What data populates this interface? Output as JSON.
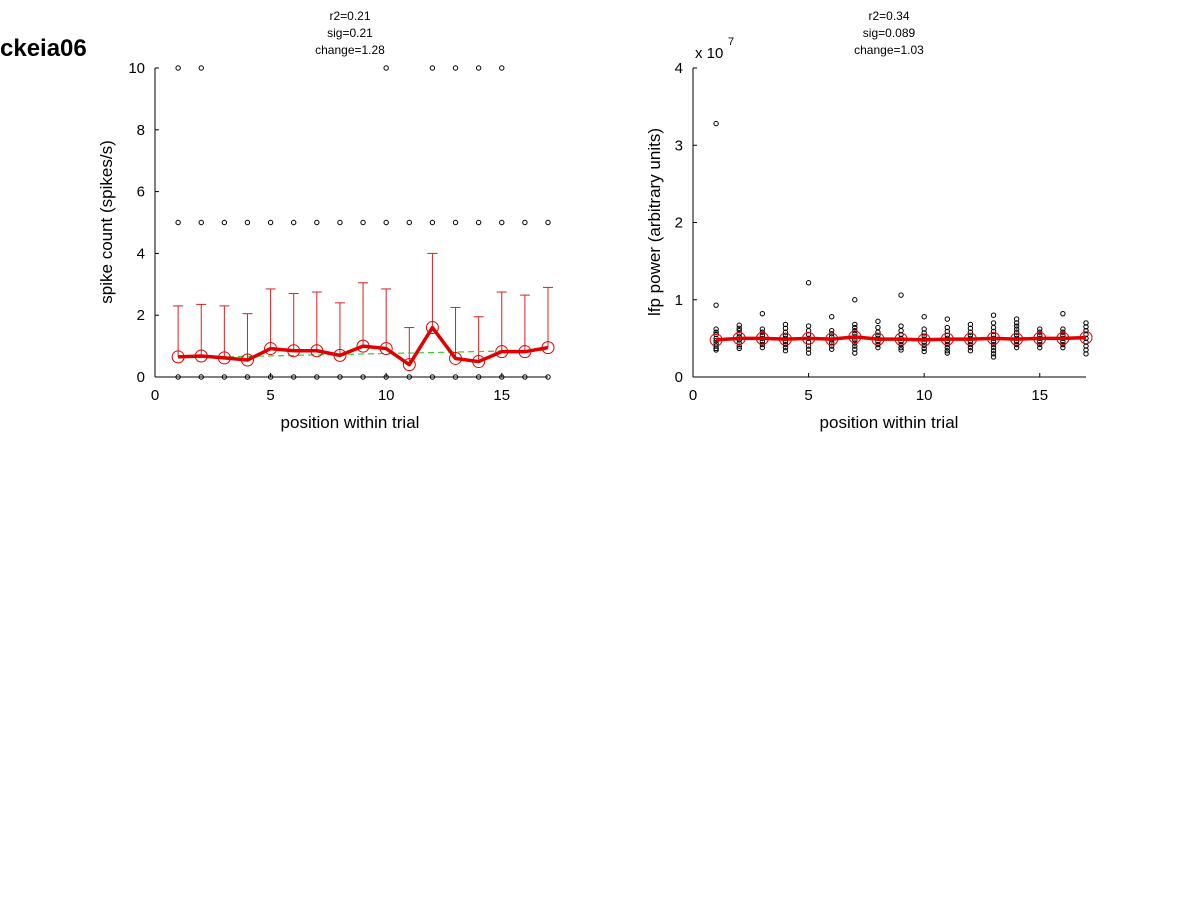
{
  "figure_title": "ckeia06",
  "chart_data": [
    {
      "type": "scatter",
      "stats": [
        "r2=0.21",
        "sig=0.21",
        "change=1.28"
      ],
      "xlabel": "position within trial",
      "ylabel": "spike count (spikes/s)",
      "xlim": [
        0,
        17
      ],
      "ylim": [
        0,
        10
      ],
      "xticks": [
        0,
        5,
        10,
        15
      ],
      "yticks": [
        0,
        2,
        4,
        6,
        8,
        10
      ],
      "exponent": null,
      "colors": {
        "raw": "#000000",
        "mean": "#e00000",
        "errorbar": "#d82020",
        "fit": "#33cc33"
      },
      "raw_points": [
        [
          1,
          0
        ],
        [
          1,
          5
        ],
        [
          1,
          10
        ],
        [
          2,
          0
        ],
        [
          2,
          5
        ],
        [
          2,
          10
        ],
        [
          3,
          0
        ],
        [
          3,
          5
        ],
        [
          4,
          0
        ],
        [
          4,
          5
        ],
        [
          5,
          0
        ],
        [
          5,
          5
        ],
        [
          6,
          0
        ],
        [
          6,
          5
        ],
        [
          7,
          0
        ],
        [
          7,
          5
        ],
        [
          8,
          0
        ],
        [
          8,
          5
        ],
        [
          9,
          0
        ],
        [
          9,
          5
        ],
        [
          10,
          0
        ],
        [
          10,
          5
        ],
        [
          10,
          10
        ],
        [
          11,
          0
        ],
        [
          11,
          5
        ],
        [
          12,
          0
        ],
        [
          12,
          5
        ],
        [
          12,
          10
        ],
        [
          13,
          0
        ],
        [
          13,
          5
        ],
        [
          13,
          10
        ],
        [
          14,
          0
        ],
        [
          14,
          5
        ],
        [
          14,
          10
        ],
        [
          15,
          0
        ],
        [
          15,
          5
        ],
        [
          15,
          10
        ],
        [
          16,
          0
        ],
        [
          16,
          5
        ],
        [
          17,
          0
        ],
        [
          17,
          5
        ]
      ],
      "mean": {
        "x": [
          1,
          2,
          3,
          4,
          5,
          6,
          7,
          8,
          9,
          10,
          11,
          12,
          13,
          14,
          15,
          16,
          17
        ],
        "y": [
          0.65,
          0.68,
          0.62,
          0.55,
          0.92,
          0.85,
          0.85,
          0.7,
          1.0,
          0.92,
          0.4,
          1.6,
          0.6,
          0.5,
          0.82,
          0.82,
          0.95
        ],
        "err_upper": [
          2.3,
          2.35,
          2.3,
          2.05,
          2.85,
          2.7,
          2.75,
          2.4,
          3.05,
          2.85,
          1.6,
          4.0,
          2.25,
          1.95,
          2.75,
          2.65,
          2.9
        ]
      },
      "fit": {
        "x": [
          1,
          17
        ],
        "y": [
          0.62,
          0.87
        ]
      }
    },
    {
      "type": "scatter",
      "stats": [
        "r2=0.34",
        "sig=0.089",
        "change=1.03"
      ],
      "xlabel": "position within trial",
      "ylabel": "lfp power (arbitrary units)",
      "xlim": [
        0,
        17
      ],
      "ylim": [
        0,
        4
      ],
      "xticks": [
        0,
        5,
        10,
        15
      ],
      "yticks": [
        0,
        1,
        2,
        3,
        4
      ],
      "exponent": {
        "base": "x 10",
        "power": "7"
      },
      "colors": {
        "raw": "#000000",
        "mean": "#e00000"
      },
      "raw_points": [
        [
          1,
          3.28
        ],
        [
          1,
          0.93
        ],
        [
          1,
          0.62
        ],
        [
          1,
          0.58
        ],
        [
          1,
          0.55
        ],
        [
          1,
          0.5
        ],
        [
          1,
          0.47
        ],
        [
          1,
          0.43
        ],
        [
          1,
          0.4
        ],
        [
          1,
          0.37
        ],
        [
          1,
          0.35
        ],
        [
          2,
          0.67
        ],
        [
          2,
          0.63
        ],
        [
          2,
          0.6
        ],
        [
          2,
          0.56
        ],
        [
          2,
          0.52
        ],
        [
          2,
          0.48
        ],
        [
          2,
          0.44
        ],
        [
          2,
          0.4
        ],
        [
          2,
          0.37
        ],
        [
          3,
          0.82
        ],
        [
          3,
          0.62
        ],
        [
          3,
          0.58
        ],
        [
          3,
          0.54
        ],
        [
          3,
          0.5
        ],
        [
          3,
          0.46
        ],
        [
          3,
          0.42
        ],
        [
          3,
          0.38
        ],
        [
          4,
          0.68
        ],
        [
          4,
          0.63
        ],
        [
          4,
          0.58
        ],
        [
          4,
          0.54
        ],
        [
          4,
          0.5
        ],
        [
          4,
          0.46
        ],
        [
          4,
          0.42
        ],
        [
          4,
          0.38
        ],
        [
          4,
          0.34
        ],
        [
          5,
          1.22
        ],
        [
          5,
          0.66
        ],
        [
          5,
          0.6
        ],
        [
          5,
          0.55
        ],
        [
          5,
          0.5
        ],
        [
          5,
          0.45
        ],
        [
          5,
          0.4
        ],
        [
          5,
          0.36
        ],
        [
          5,
          0.31
        ],
        [
          6,
          0.78
        ],
        [
          6,
          0.6
        ],
        [
          6,
          0.56
        ],
        [
          6,
          0.52
        ],
        [
          6,
          0.48
        ],
        [
          6,
          0.44
        ],
        [
          6,
          0.4
        ],
        [
          6,
          0.36
        ],
        [
          7,
          1.0
        ],
        [
          7,
          0.68
        ],
        [
          7,
          0.64
        ],
        [
          7,
          0.6
        ],
        [
          7,
          0.56
        ],
        [
          7,
          0.52
        ],
        [
          7,
          0.48
        ],
        [
          7,
          0.44
        ],
        [
          7,
          0.4
        ],
        [
          7,
          0.36
        ],
        [
          7,
          0.31
        ],
        [
          8,
          0.72
        ],
        [
          8,
          0.64
        ],
        [
          8,
          0.58
        ],
        [
          8,
          0.54
        ],
        [
          8,
          0.5
        ],
        [
          8,
          0.46
        ],
        [
          8,
          0.42
        ],
        [
          8,
          0.38
        ],
        [
          9,
          1.06
        ],
        [
          9,
          0.66
        ],
        [
          9,
          0.6
        ],
        [
          9,
          0.55
        ],
        [
          9,
          0.5
        ],
        [
          9,
          0.46
        ],
        [
          9,
          0.42
        ],
        [
          9,
          0.38
        ],
        [
          9,
          0.35
        ],
        [
          10,
          0.78
        ],
        [
          10,
          0.62
        ],
        [
          10,
          0.57
        ],
        [
          10,
          0.53
        ],
        [
          10,
          0.49
        ],
        [
          10,
          0.45
        ],
        [
          10,
          0.41
        ],
        [
          10,
          0.37
        ],
        [
          10,
          0.33
        ],
        [
          11,
          0.75
        ],
        [
          11,
          0.64
        ],
        [
          11,
          0.59
        ],
        [
          11,
          0.54
        ],
        [
          11,
          0.5
        ],
        [
          11,
          0.46
        ],
        [
          11,
          0.42
        ],
        [
          11,
          0.38
        ],
        [
          11,
          0.34
        ],
        [
          11,
          0.31
        ],
        [
          12,
          0.68
        ],
        [
          12,
          0.63
        ],
        [
          12,
          0.58
        ],
        [
          12,
          0.54
        ],
        [
          12,
          0.5
        ],
        [
          12,
          0.46
        ],
        [
          12,
          0.42
        ],
        [
          12,
          0.38
        ],
        [
          12,
          0.34
        ],
        [
          13,
          0.8
        ],
        [
          13,
          0.7
        ],
        [
          13,
          0.64
        ],
        [
          13,
          0.59
        ],
        [
          13,
          0.54
        ],
        [
          13,
          0.5
        ],
        [
          13,
          0.46
        ],
        [
          13,
          0.42
        ],
        [
          13,
          0.38
        ],
        [
          13,
          0.34
        ],
        [
          13,
          0.3
        ],
        [
          13,
          0.26
        ],
        [
          14,
          0.75
        ],
        [
          14,
          0.7
        ],
        [
          14,
          0.66
        ],
        [
          14,
          0.62
        ],
        [
          14,
          0.58
        ],
        [
          14,
          0.54
        ],
        [
          14,
          0.5
        ],
        [
          14,
          0.46
        ],
        [
          14,
          0.42
        ],
        [
          14,
          0.38
        ],
        [
          15,
          0.62
        ],
        [
          15,
          0.58
        ],
        [
          15,
          0.54
        ],
        [
          15,
          0.5
        ],
        [
          15,
          0.46
        ],
        [
          15,
          0.42
        ],
        [
          15,
          0.38
        ],
        [
          16,
          0.82
        ],
        [
          16,
          0.62
        ],
        [
          16,
          0.58
        ],
        [
          16,
          0.54
        ],
        [
          16,
          0.5
        ],
        [
          16,
          0.46
        ],
        [
          16,
          0.42
        ],
        [
          16,
          0.38
        ],
        [
          17,
          0.7
        ],
        [
          17,
          0.65
        ],
        [
          17,
          0.6
        ],
        [
          17,
          0.55
        ],
        [
          17,
          0.5
        ],
        [
          17,
          0.45
        ],
        [
          17,
          0.4
        ],
        [
          17,
          0.35
        ],
        [
          17,
          0.3
        ]
      ],
      "mean": {
        "x": [
          1,
          2,
          3,
          4,
          5,
          6,
          7,
          8,
          9,
          10,
          11,
          12,
          13,
          14,
          15,
          16,
          17
        ],
        "y": [
          0.48,
          0.5,
          0.5,
          0.49,
          0.5,
          0.49,
          0.52,
          0.49,
          0.49,
          0.48,
          0.49,
          0.49,
          0.5,
          0.49,
          0.5,
          0.5,
          0.51
        ]
      }
    }
  ]
}
